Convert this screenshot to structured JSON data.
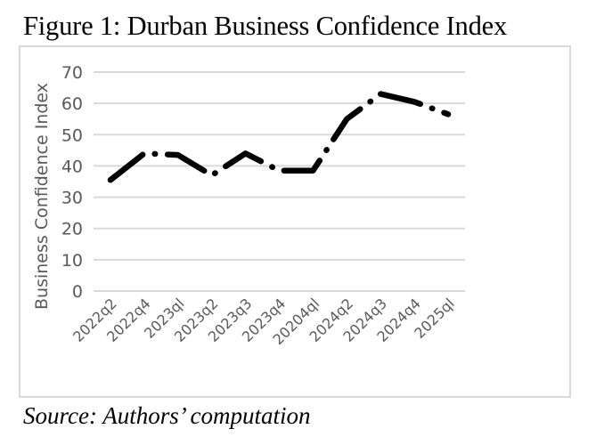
{
  "chart_data": {
    "type": "line",
    "title": "Figure 1: Durban Business Confidence Index",
    "xlabel": "",
    "ylabel": "Business Confidence Index",
    "categories": [
      "2022q2",
      "2022q4",
      "2023ql",
      "2023q2",
      "2023q3",
      "2023q4",
      "20204ql",
      "2024q2",
      "2024q3",
      "2024q4",
      "2025ql"
    ],
    "series": [
      {
        "name": "Business Confidence Index",
        "values": [
          35.5,
          44,
          43.5,
          37,
          44,
          38.5,
          38.5,
          55,
          63,
          60.5,
          56.5
        ],
        "color": "#000000",
        "style": "long-dash-dot"
      }
    ],
    "ylim": [
      0,
      70
    ],
    "yticks": [
      0,
      10,
      20,
      30,
      40,
      50,
      60,
      70
    ],
    "grid": true,
    "legend": "none",
    "source": "Source: Authors’ computation"
  }
}
